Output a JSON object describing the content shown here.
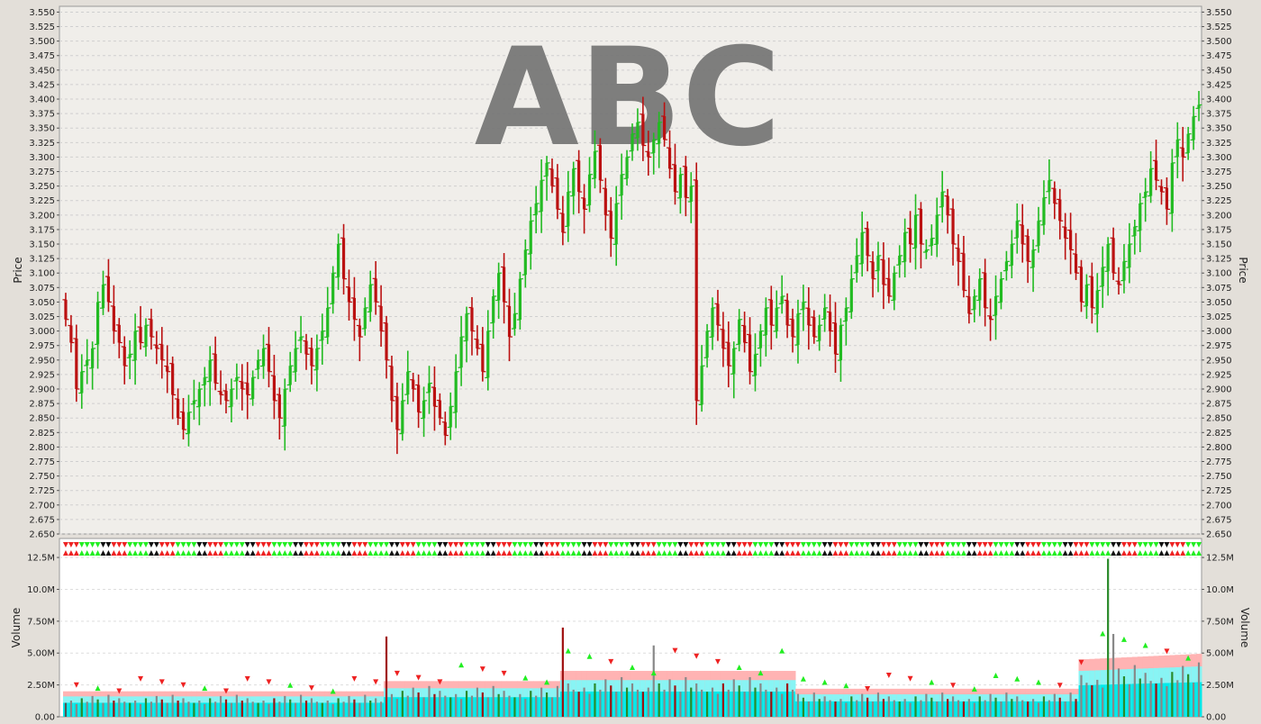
{
  "watermark": "ABC",
  "colors": {
    "up": "#22bb22",
    "down": "#bb1111",
    "neutral": "#111111",
    "background": "#e3dfd9",
    "plot_price": "#f0eeea",
    "plot_volume": "#ffffff",
    "grid": "#cfcfcf",
    "band_outer": "#ffb3b3",
    "band_mid": "#88f4f4",
    "band_inner": "#00eaea",
    "volume_bar": "#888888",
    "arrow_up": "#22ee22",
    "arrow_down": "#ee2222"
  },
  "chart_data": [
    {
      "type": "ohlc",
      "name": "price",
      "ylabel": "Price",
      "ylim": [
        2.65,
        3.56
      ],
      "ticks": [
        "2.650",
        "2.675",
        "2.700",
        "2.725",
        "2.750",
        "2.775",
        "2.800",
        "2.825",
        "2.850",
        "2.875",
        "2.900",
        "2.925",
        "2.950",
        "2.975",
        "3.000",
        "3.025",
        "3.050",
        "3.075",
        "3.100",
        "3.125",
        "3.150",
        "3.175",
        "3.200",
        "3.225",
        "3.250",
        "3.275",
        "3.300",
        "3.325",
        "3.350",
        "3.375",
        "3.400",
        "3.425",
        "3.450",
        "3.475",
        "3.500",
        "3.525",
        "3.550"
      ],
      "closes": [
        3.02,
        2.98,
        2.9,
        2.93,
        2.95,
        2.97,
        3.05,
        3.08,
        3.05,
        3.0,
        2.98,
        2.94,
        2.96,
        3.0,
        2.98,
        3.01,
        2.99,
        2.97,
        2.95,
        2.93,
        2.89,
        2.85,
        2.83,
        2.86,
        2.88,
        2.9,
        2.92,
        2.95,
        2.91,
        2.89,
        2.88,
        2.9,
        2.92,
        2.9,
        2.89,
        2.92,
        2.95,
        2.97,
        2.93,
        2.88,
        2.85,
        2.9,
        2.94,
        2.97,
        2.99,
        2.96,
        2.94,
        2.97,
        3.0,
        3.04,
        3.1,
        3.15,
        3.09,
        3.05,
        3.02,
        2.99,
        3.04,
        3.08,
        3.05,
        3.0,
        2.95,
        2.88,
        2.83,
        2.88,
        2.93,
        2.9,
        2.86,
        2.88,
        2.91,
        2.87,
        2.85,
        2.82,
        2.87,
        2.93,
        2.99,
        3.03,
        3.0,
        2.97,
        2.93,
        3.0,
        3.06,
        3.1,
        3.05,
        2.99,
        3.03,
        3.09,
        3.14,
        3.19,
        3.22,
        3.26,
        3.29,
        3.25,
        3.21,
        3.17,
        3.24,
        3.28,
        3.24,
        3.21,
        3.27,
        3.31,
        3.26,
        3.2,
        3.16,
        3.22,
        3.27,
        3.3,
        3.34,
        3.36,
        3.32,
        3.3,
        3.33,
        3.36,
        3.33,
        3.28,
        3.24,
        3.27,
        3.23,
        3.25,
        2.88,
        2.94,
        3.0,
        3.04,
        3.01,
        2.97,
        2.94,
        2.97,
        3.02,
        2.98,
        2.93,
        2.96,
        3.0,
        3.04,
        3.01,
        3.04,
        3.06,
        3.01,
        2.99,
        3.03,
        3.05,
        3.01,
        2.99,
        3.01,
        3.04,
        3.0,
        2.96,
        3.01,
        3.04,
        3.09,
        3.13,
        3.17,
        3.13,
        3.09,
        3.13,
        3.08,
        3.06,
        3.1,
        3.13,
        3.17,
        3.15,
        3.2,
        3.15,
        3.14,
        3.16,
        3.2,
        3.24,
        3.2,
        3.15,
        3.12,
        3.07,
        3.03,
        3.06,
        3.09,
        3.04,
        3.02,
        3.06,
        3.09,
        3.12,
        3.15,
        3.19,
        3.15,
        3.12,
        3.14,
        3.19,
        3.23,
        3.26,
        3.22,
        3.19,
        3.16,
        3.14,
        3.1,
        3.05,
        3.08,
        3.04,
        3.07,
        3.11,
        3.15,
        3.1,
        3.08,
        3.12,
        3.15,
        3.18,
        3.22,
        3.24,
        3.28,
        3.26,
        3.24,
        3.21,
        3.29,
        3.33,
        3.3,
        3.34,
        3.37,
        3.39
      ],
      "opens_offset": [
        0.04,
        -0.03,
        0.02,
        -0.02,
        0.03,
        -0.04,
        0.02,
        -0.03,
        0.04,
        -0.02,
        0.03,
        -0.02
      ]
    },
    {
      "type": "bar",
      "name": "volume",
      "ylabel": "Volume",
      "ylim": [
        0,
        13.0
      ],
      "ticks": [
        "0.00",
        "2.50M",
        "5.00M",
        "7.50M",
        "10.0M",
        "12.5M"
      ],
      "volume_base": [
        1.2,
        1.4,
        1.1,
        1.6,
        1.3,
        1.8,
        1.5,
        1.2,
        1.9,
        1.4,
        1.6,
        1.3
      ],
      "spikes": [
        [
          60,
          6.3
        ],
        [
          93,
          7.0
        ],
        [
          110,
          5.6
        ],
        [
          195,
          12.4
        ],
        [
          196,
          6.5
        ]
      ]
    }
  ]
}
